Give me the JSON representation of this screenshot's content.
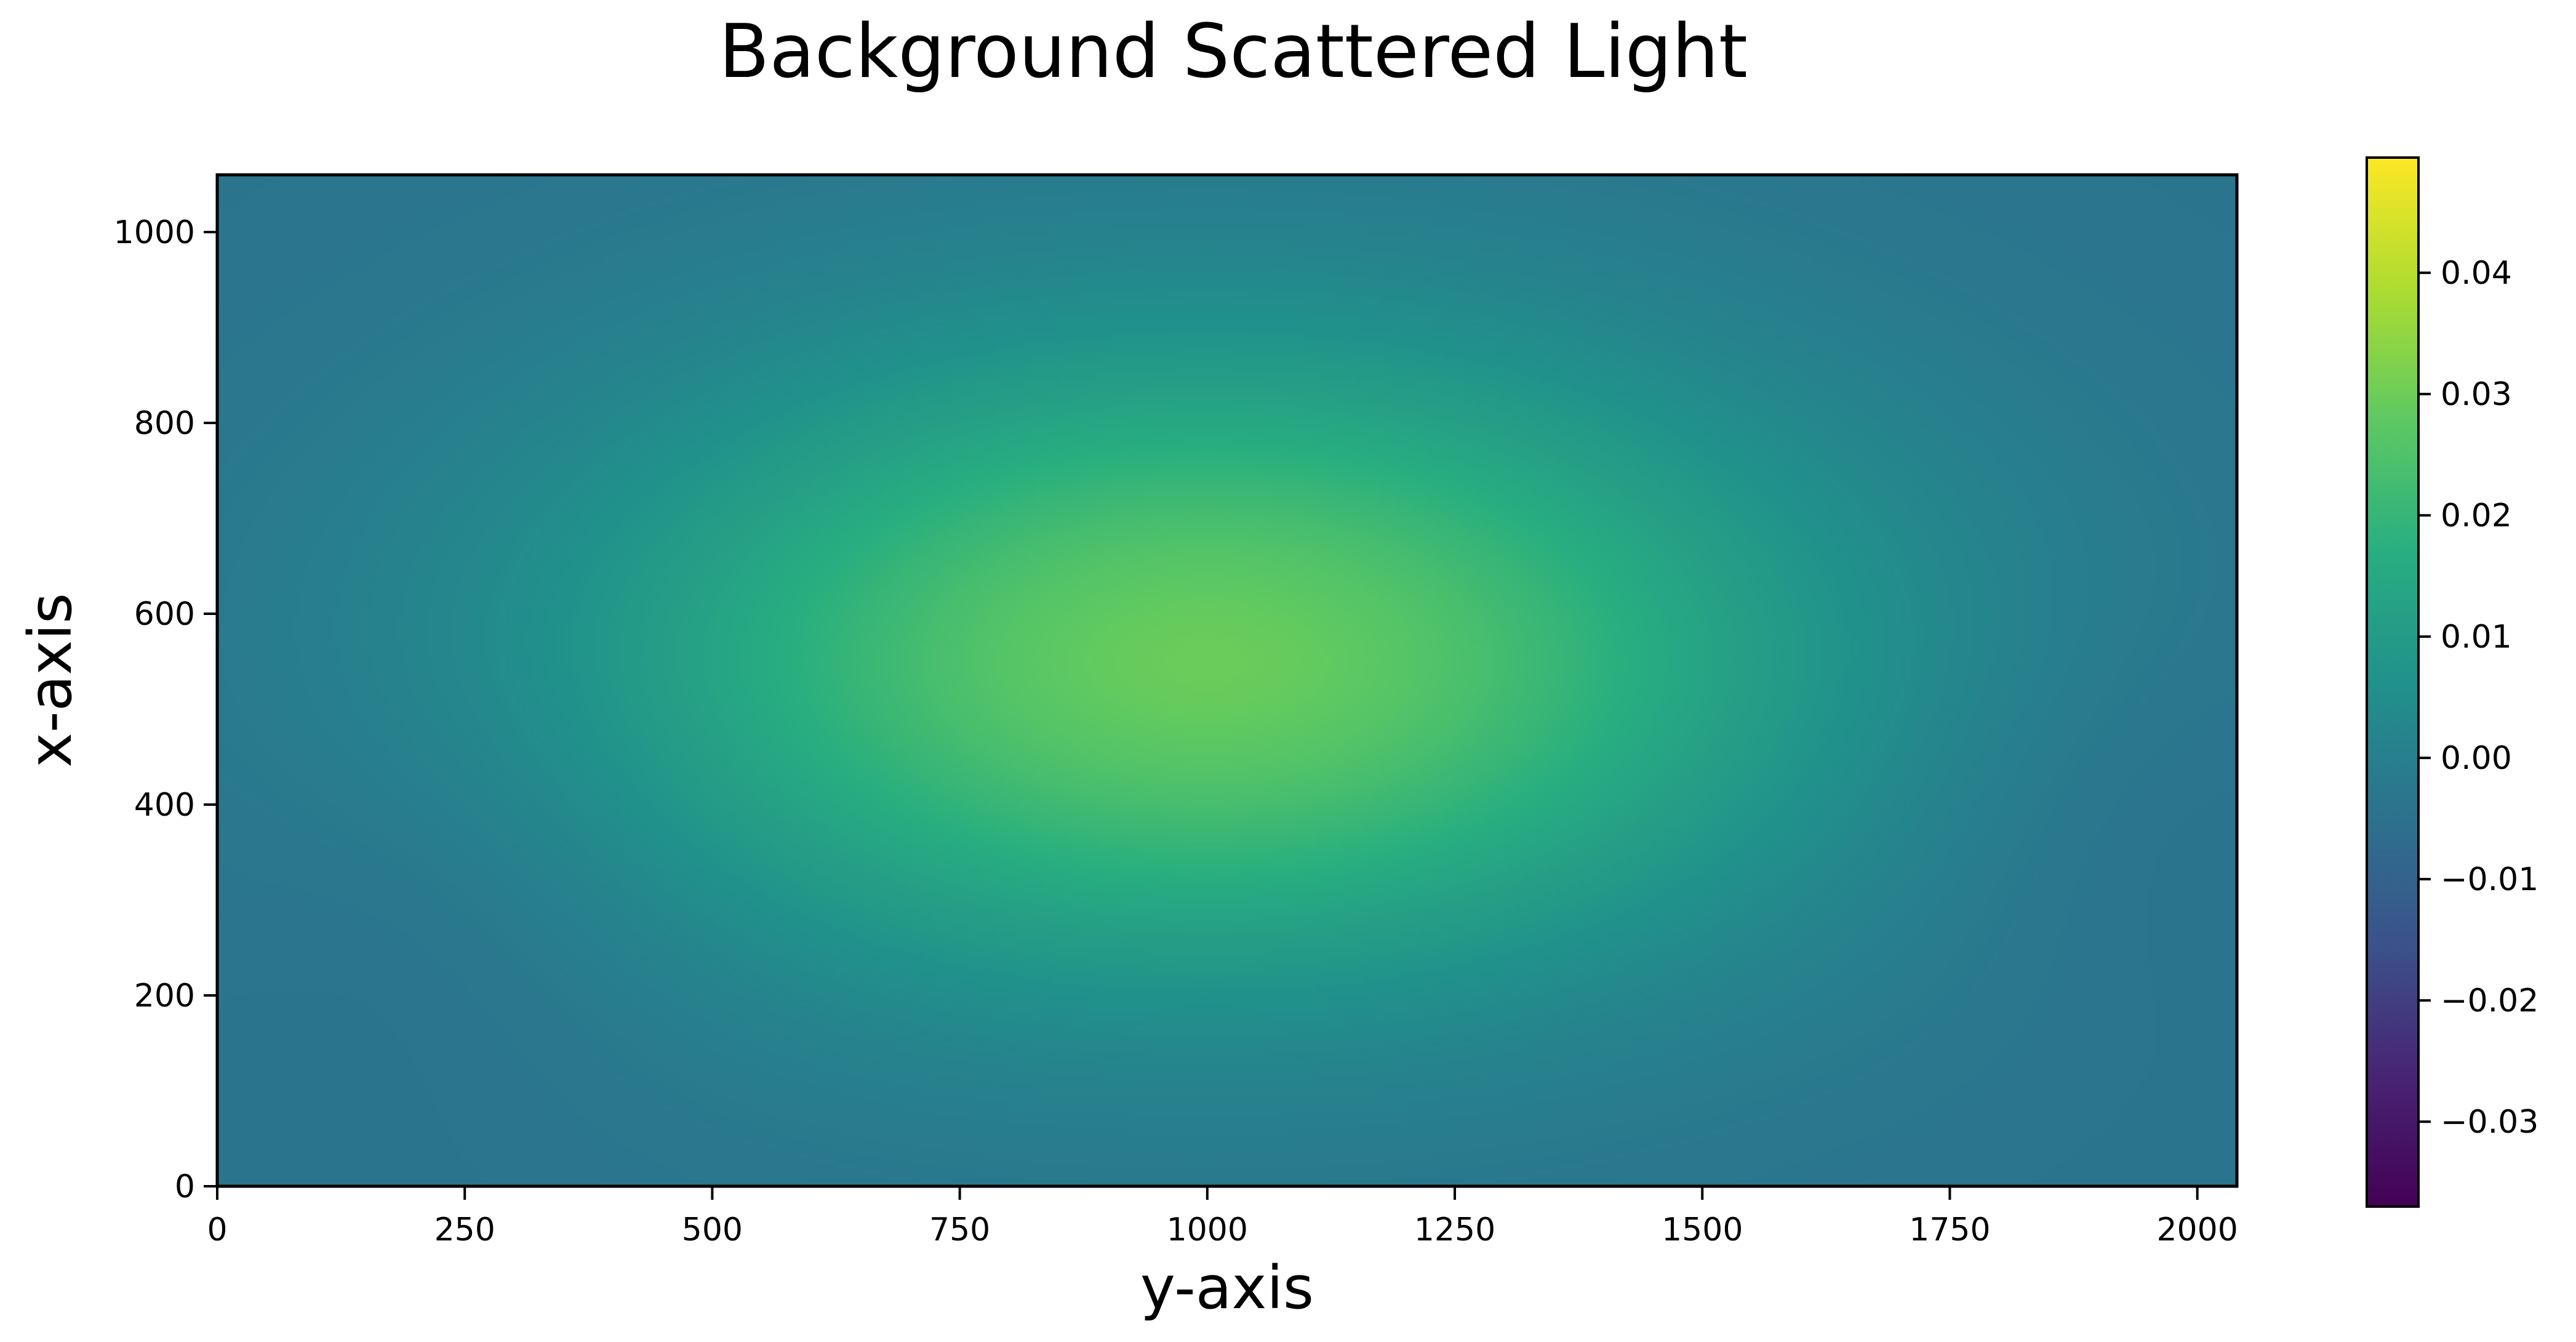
{
  "chart_data": {
    "type": "heatmap",
    "title": "Background Scattered Light",
    "xlabel": "y-axis",
    "ylabel": "x-axis",
    "xlim": [
      0,
      2040
    ],
    "ylim": [
      0,
      1060
    ],
    "x_ticks": [
      0,
      250,
      500,
      750,
      1000,
      1250,
      1500,
      1750,
      2000
    ],
    "x_tick_labels": [
      "0",
      "250",
      "500",
      "750",
      "1000",
      "1250",
      "1500",
      "1750",
      "2000"
    ],
    "y_ticks": [
      0,
      200,
      400,
      600,
      800,
      1000
    ],
    "y_tick_labels": [
      "0",
      "200",
      "400",
      "600",
      "800",
      "1000"
    ],
    "colormap": "viridis",
    "colorbar": {
      "vmin": -0.037,
      "vmax": 0.0495,
      "ticks": [
        -0.03,
        -0.02,
        -0.01,
        0.0,
        0.01,
        0.02,
        0.03,
        0.04
      ],
      "tick_labels": [
        "−0.03",
        "−0.02",
        "−0.01",
        "0.00",
        "0.01",
        "0.02",
        "0.03",
        "0.04"
      ]
    },
    "field": {
      "description_values": "smooth background with peak near center",
      "peak": {
        "x": 1000,
        "y": 550,
        "value": 0.0295
      },
      "edge_value": -0.004,
      "secondary_low": [
        {
          "x": 250,
          "y": 300,
          "value": -0.006
        },
        {
          "x": 1900,
          "y": 400,
          "value": -0.006
        }
      ]
    },
    "grid": false,
    "legend": "none"
  }
}
